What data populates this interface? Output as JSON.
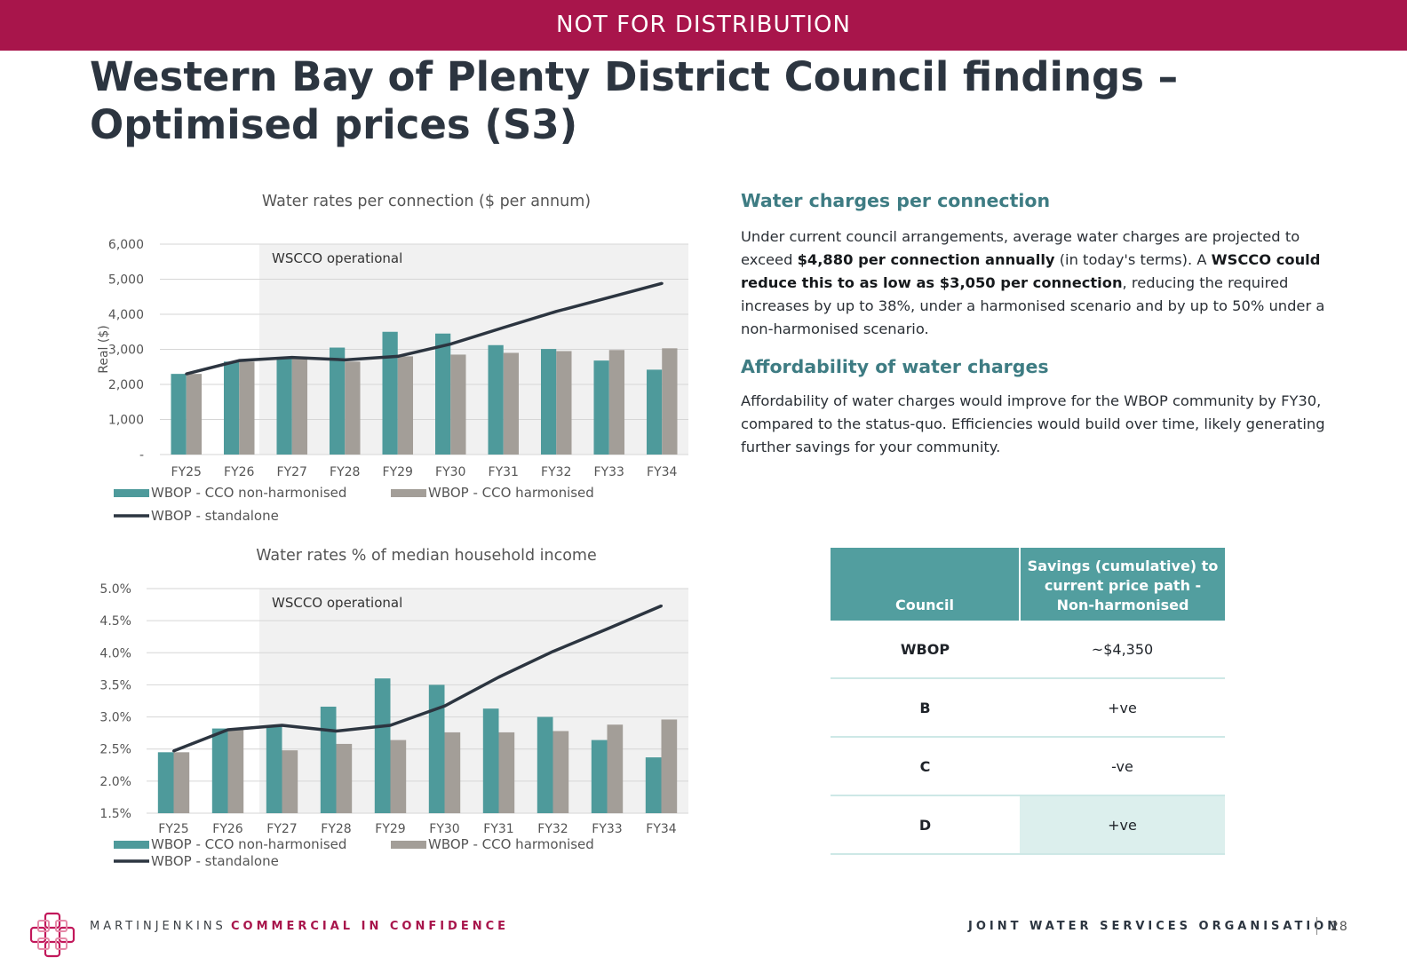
{
  "banner": "NOT FOR DISTRIBUTION",
  "title": "Western Bay of Plenty District Council findings – Optimised prices (S3)",
  "colors": {
    "banner": "#a8154b",
    "teal": "#4e9a9b",
    "grey": "#a39e98",
    "line": "#2c3540",
    "table_header": "#529e9f"
  },
  "charts": [
    {
      "type": "bar",
      "title": "Water rates per connection ($ per annum)",
      "ylabel": "Real ($)",
      "region_label": "WSCCO operational",
      "ylim": [
        0,
        6000
      ],
      "y_ticks": [
        "-",
        "1,000",
        "2,000",
        "3,000",
        "4,000",
        "5,000",
        "6,000"
      ],
      "categories": [
        "FY25",
        "FY26",
        "FY27",
        "FY28",
        "FY29",
        "FY30",
        "FY31",
        "FY32",
        "FY33",
        "FY34"
      ],
      "series": [
        {
          "name": "WBOP - CCO non-harmonised",
          "kind": "bar",
          "values": [
            2300,
            2650,
            2750,
            3050,
            3500,
            3450,
            3120,
            3010,
            2680,
            2420
          ]
        },
        {
          "name": "WBOP - CCO harmonised",
          "kind": "bar",
          "values": [
            2300,
            2650,
            2750,
            2650,
            2800,
            2850,
            2900,
            2950,
            2980,
            3030
          ]
        },
        {
          "name": "WBOP - standalone",
          "kind": "line",
          "values": [
            2300,
            2680,
            2770,
            2700,
            2800,
            3150,
            3620,
            4080,
            4480,
            4880
          ]
        }
      ]
    },
    {
      "type": "bar",
      "title": "Water rates % of median household income",
      "region_label": "WSCCO operational",
      "ylim": [
        1.5,
        5.0
      ],
      "y_ticks": [
        "1.5%",
        "2.0%",
        "2.5%",
        "3.0%",
        "3.5%",
        "4.0%",
        "4.5%",
        "5.0%"
      ],
      "categories": [
        "FY25",
        "FY26",
        "FY27",
        "FY28",
        "FY29",
        "FY30",
        "FY31",
        "FY32",
        "FY33",
        "FY34"
      ],
      "series": [
        {
          "name": "WBOP - CCO non-harmonised",
          "kind": "bar",
          "values": [
            2.45,
            2.82,
            2.85,
            3.16,
            3.6,
            3.5,
            3.13,
            3.0,
            2.64,
            2.37
          ]
        },
        {
          "name": "WBOP - CCO harmonised",
          "kind": "bar",
          "values": [
            2.45,
            2.82,
            2.48,
            2.58,
            2.64,
            2.76,
            2.76,
            2.78,
            2.88,
            2.96
          ]
        },
        {
          "name": "WBOP - standalone",
          "kind": "line",
          "values": [
            2.47,
            2.8,
            2.87,
            2.78,
            2.87,
            3.17,
            3.62,
            4.02,
            4.37,
            4.73
          ]
        }
      ]
    }
  ],
  "right": {
    "h1": "Water charges per connection",
    "p1_parts": [
      {
        "t": "Under current council arrangements, average water charges are projected to exceed ",
        "b": false
      },
      {
        "t": "$4,880 per connection annually",
        "b": true
      },
      {
        "t": " (in today's terms). A ",
        "b": false
      },
      {
        "t": "WSCCO could reduce this to as low as $3,050 per connection",
        "b": true
      },
      {
        "t": ", reducing the required increases by up to 38%, under a harmonised scenario and by up to 50% under a non-harmonised scenario.",
        "b": false
      }
    ],
    "h2": "Affordability of water charges",
    "p2": "Affordability of water charges would improve for the WBOP community by FY30, compared to the status-quo. Efficiencies would build over time, likely generating further savings for your community."
  },
  "table": {
    "headers": [
      "Council",
      "Savings (cumulative) to current price path - Non-harmonised"
    ],
    "rows": [
      [
        "WBOP",
        "~$4,350"
      ],
      [
        "B",
        "+ve"
      ],
      [
        "C",
        "-ve"
      ],
      [
        "D",
        "+ve"
      ]
    ]
  },
  "footer": {
    "brand": "MARTINJENKINS",
    "confidence": "COMMERCIAL IN CONFIDENCE",
    "org": "JOINT WATER SERVICES ORGANISATION",
    "page": "28"
  }
}
